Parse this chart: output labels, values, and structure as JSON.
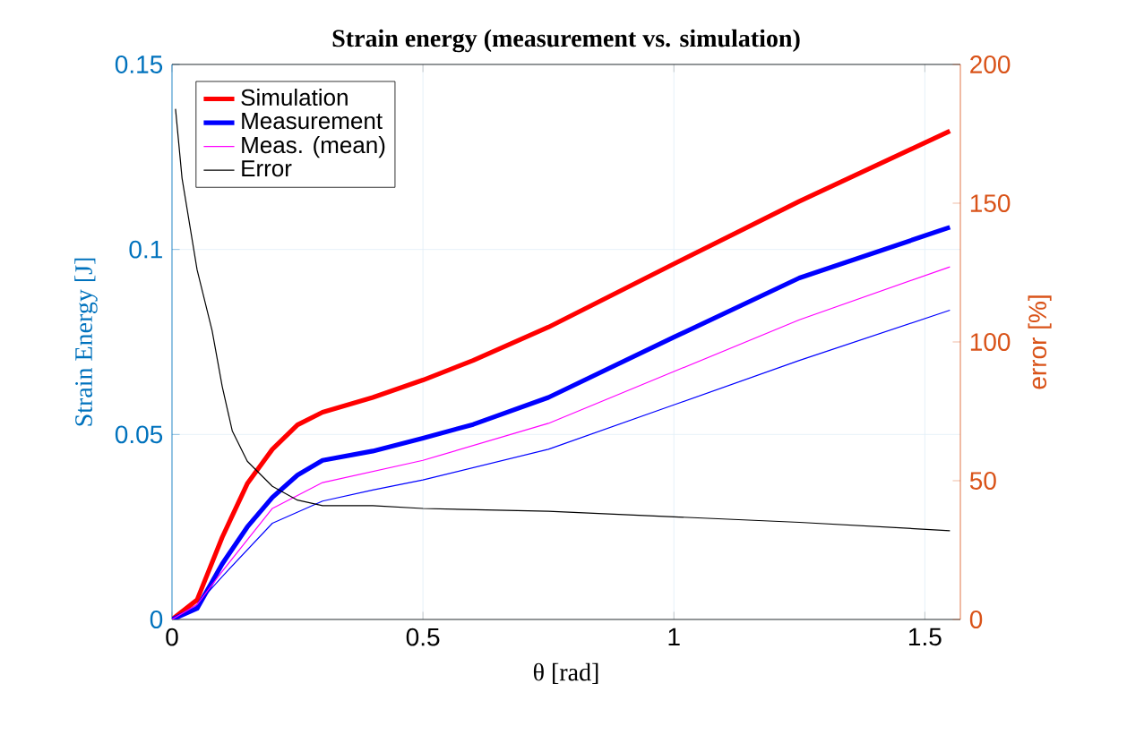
{
  "chart_data": {
    "type": "line",
    "title": "Strain energy (measurement vs. simulation)",
    "xlabel": "θ [rad]",
    "ylabel": "Strain Energy [J]",
    "y2label": "error [%]",
    "xlim": [
      0,
      1.5708
    ],
    "xticks": [
      0,
      0.5,
      1,
      1.5
    ],
    "ylim": [
      0,
      0.15
    ],
    "yticks": [
      0,
      0.05,
      0.1,
      0.15
    ],
    "y2lim": [
      0,
      200
    ],
    "y2ticks": [
      0,
      50,
      100,
      150,
      200
    ],
    "grid": true,
    "legend": "top left",
    "marker": "none",
    "series": [
      {
        "name": "Simulation",
        "color": "#ff0000",
        "x": [
          0,
          0.05,
          0.1,
          0.15,
          0.2,
          0.25,
          0.3,
          0.4,
          0.5,
          0.6,
          0.75,
          1.0,
          1.25,
          1.55
        ],
        "values": [
          0,
          0.0053,
          0.0222,
          0.0367,
          0.046,
          0.0526,
          0.056,
          0.06,
          0.0647,
          0.07,
          0.079,
          0.0961,
          0.113,
          0.132
        ]
      },
      {
        "name": "Measurement",
        "color": "#0000ff",
        "x": [
          0,
          0.05,
          0.1,
          0.15,
          0.2,
          0.25,
          0.3,
          0.4,
          0.5,
          0.6,
          0.75,
          1.0,
          1.25,
          1.55
        ],
        "values": [
          0,
          0.003,
          0.015,
          0.025,
          0.033,
          0.039,
          0.043,
          0.0455,
          0.049,
          0.0527,
          0.06,
          0.0763,
          0.0923,
          0.106
        ]
      },
      {
        "color": "#0000ff",
        "x": [
          1.55,
          1.25,
          1.0,
          0.75,
          0.5,
          0.4,
          0.3,
          0.2,
          0.1,
          0.05,
          0
        ],
        "values": [
          0.0836,
          0.07,
          0.058,
          0.046,
          0.0377,
          0.035,
          0.032,
          0.026,
          0.0116,
          0.004,
          0
        ]
      },
      {
        "name": "Meas. (mean)",
        "color": "#ff00ff",
        "x": [
          0,
          0.05,
          0.1,
          0.2,
          0.3,
          0.5,
          0.75,
          1.0,
          1.25,
          1.55
        ],
        "values": [
          0,
          0.004,
          0.013,
          0.03,
          0.037,
          0.043,
          0.053,
          0.067,
          0.081,
          0.0953
        ]
      },
      {
        "name": "Error",
        "color": "#000000",
        "axis": "y2",
        "x": [
          0.007,
          0.02,
          0.05,
          0.08,
          0.1,
          0.12,
          0.15,
          0.2,
          0.25,
          0.3,
          0.4,
          0.5,
          0.75,
          1.0,
          1.25,
          1.55
        ],
        "values": [
          184,
          159,
          126,
          104,
          84,
          68,
          57,
          48,
          43,
          41,
          41,
          40,
          39,
          37,
          35,
          32
        ]
      }
    ]
  }
}
